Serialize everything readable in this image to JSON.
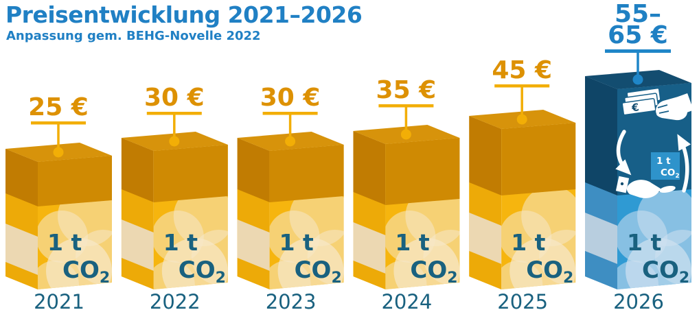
{
  "header": {
    "title": "Preisentwicklung 2021–2026",
    "subtitle": "Anpassung gem. BEHG-Novelle 2022"
  },
  "colors": {
    "title_blue": "#2080c4",
    "label_teal": "#19617f",
    "price_orange": "#dd9103",
    "pin_gold": "#f2ae06",
    "highlight_price_blue": "#1f80c3",
    "highlight_pin_blue": "#1f86c8",
    "icon_white": "#ffffff",
    "icon_navy": "#134d70"
  },
  "chart_data": {
    "type": "bar",
    "title": "Preisentwicklung 2021–2026",
    "subtitle": "Anpassung gem. BEHG-Novelle 2022",
    "x": [
      "2021",
      "2022",
      "2023",
      "2024",
      "2025",
      "2026"
    ],
    "values_eur_min": [
      25,
      30,
      30,
      35,
      45,
      55
    ],
    "values_eur_max": [
      25,
      30,
      30,
      35,
      45,
      65
    ],
    "price_labels": [
      "25 €",
      "30 €",
      "30 €",
      "35 €",
      "45 €",
      "55–65 €"
    ],
    "price_lines": [
      [
        "25 €"
      ],
      [
        "30 €"
      ],
      [
        "30 €"
      ],
      [
        "35 €"
      ],
      [
        "45 €"
      ],
      [
        "55–",
        "65 €"
      ]
    ],
    "block_label": {
      "line1": "1 t",
      "co": "CO",
      "sub": "2"
    },
    "highlight_index": 5,
    "icons": {
      "banknote_symbol": "€",
      "certificate": {
        "line1": "1 t",
        "co": "CO",
        "sub": "2"
      }
    },
    "palettes": {
      "standard": {
        "top": "#d7930b",
        "front_dark": "#cf8a03",
        "side_dark": "#c17c02",
        "front_light": "#f6b50e",
        "side_a": "#edaa08",
        "side_b": "#ecd8b2",
        "bubble": "#f6e8c8"
      },
      "highlight": {
        "top": "#134d70",
        "front_dark": "#175f88",
        "side_dark": "#0f4567",
        "front_light": "#2f9ad3",
        "side_a": "#3e8ec2",
        "side_b": "#b8cedf",
        "bubble": "#cfe0f0",
        "certificate_fill": "#2e93cb"
      }
    }
  }
}
